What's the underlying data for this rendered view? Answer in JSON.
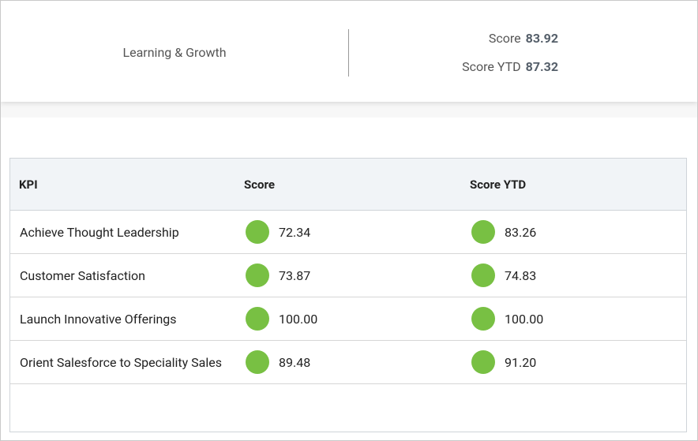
{
  "header": {
    "title": "Learning & Growth",
    "score_label": "Score",
    "score": "83.92",
    "score_ytd_label": "Score YTD",
    "score_ytd": "87.32"
  },
  "table": {
    "columns": [
      "KPI",
      "Score",
      "Score YTD"
    ],
    "rows": [
      [
        "Achieve Thought Leadership",
        "72.34",
        "83.26"
      ],
      [
        "Customer Satisfaction",
        "73.87",
        "74.83"
      ],
      [
        "Launch Innovative Offerings",
        "100.00",
        "100.00"
      ],
      [
        "Orient Salesforce to Speciality Sales",
        "89.48",
        "91.20"
      ]
    ]
  }
}
